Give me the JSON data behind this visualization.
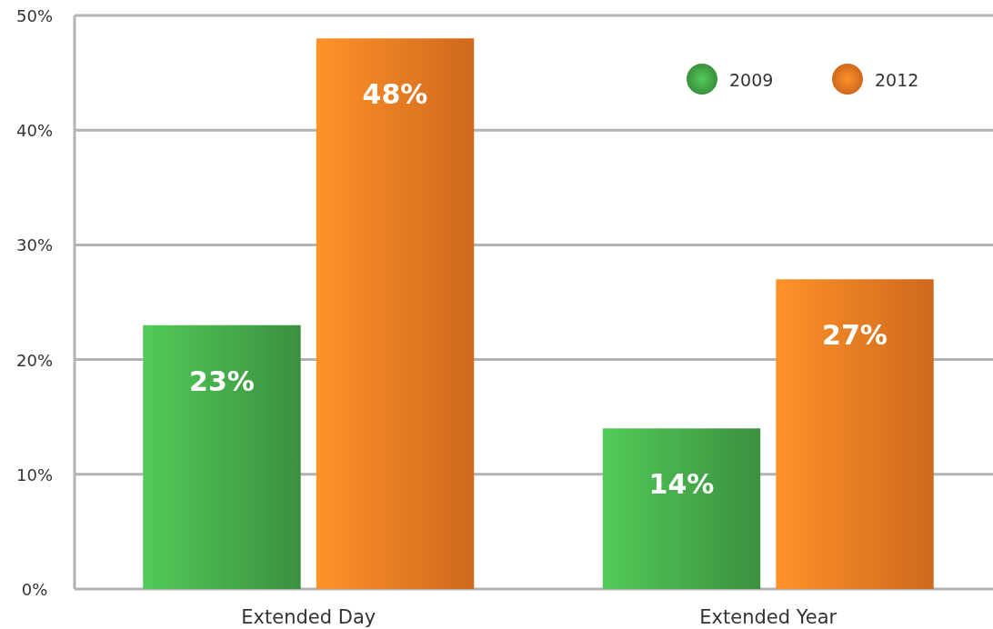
{
  "chart_data": {
    "type": "bar",
    "categories": [
      "Extended Day",
      "Extended Year"
    ],
    "series": [
      {
        "name": "2009",
        "color": "#45a94a",
        "values": [
          23,
          14
        ],
        "value_labels": [
          "23%",
          "14%"
        ]
      },
      {
        "name": "2012",
        "color": "#f37a22",
        "values": [
          48,
          27
        ],
        "value_labels": [
          "48%",
          "27%"
        ]
      }
    ],
    "ylim": [
      0,
      50
    ],
    "yticks": [
      {
        "value": 0,
        "label": "0%"
      },
      {
        "value": 10,
        "label": "10%"
      },
      {
        "value": 20,
        "label": "20%"
      },
      {
        "value": 30,
        "label": "30%"
      },
      {
        "value": 40,
        "label": "40%"
      },
      {
        "value": 50,
        "label": "50%"
      }
    ],
    "grid": "y",
    "legend": "top right"
  }
}
